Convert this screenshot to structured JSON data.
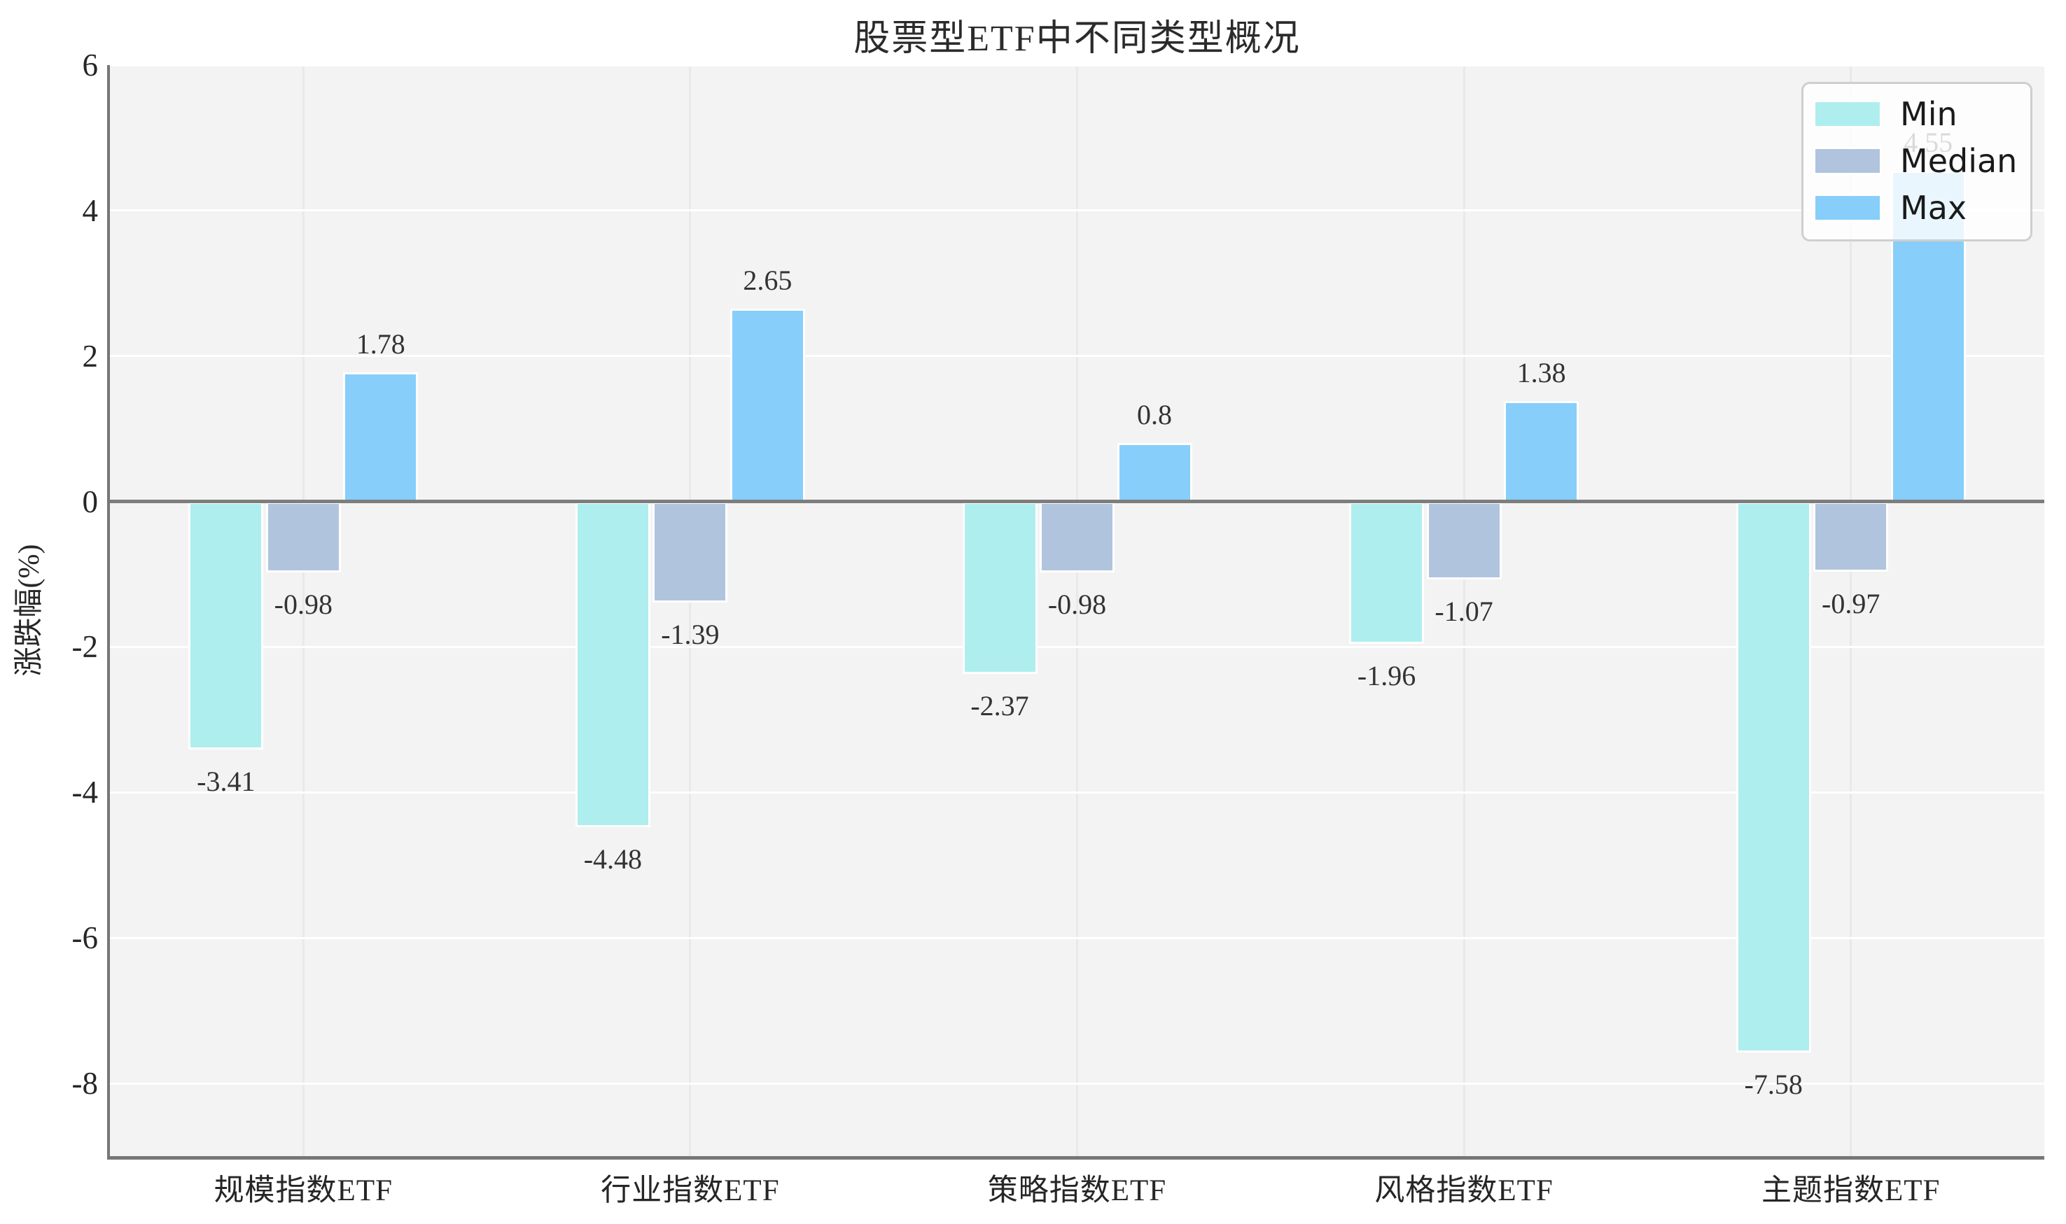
{
  "title": "股票型ETF中不同类型概况",
  "ylabel": "涨跌幅(%)",
  "legend": {
    "items": [
      "Min",
      "Median",
      "Max"
    ]
  },
  "colors": {
    "min": "#AFEEEE",
    "median": "#B0C4DE",
    "max": "#87CEFA",
    "plot_background": "#f2f3f2",
    "axis": "#767676",
    "zero_line": "#7d7d7d"
  },
  "chart_data": {
    "type": "bar",
    "title": "股票型ETF中不同类型概况",
    "xlabel": "",
    "ylabel": "涨跌幅(%)",
    "categories": [
      "规模指数ETF",
      "行业指数ETF",
      "策略指数ETF",
      "风格指数ETF",
      "主题指数ETF"
    ],
    "series": [
      {
        "name": "Min",
        "color": "#AFEEEE",
        "values": [
          -3.41,
          -4.48,
          -2.37,
          -1.96,
          -7.58
        ]
      },
      {
        "name": "Median",
        "color": "#B0C4DE",
        "values": [
          -0.98,
          -1.39,
          -0.98,
          -1.07,
          -0.97
        ]
      },
      {
        "name": "Max",
        "color": "#87CEFA",
        "values": [
          1.78,
          2.65,
          0.8,
          1.38,
          4.55
        ]
      }
    ],
    "value_labels": {
      "Min": [
        "-3.41",
        "-4.48",
        "-2.37",
        "-1.96",
        "-7.58"
      ],
      "Median": [
        "-0.98",
        "-1.39",
        "-0.98",
        "-1.07",
        "-0.97"
      ],
      "Max": [
        "1.78",
        "2.65",
        "0.8",
        "1.38",
        "4.55"
      ]
    },
    "yticks": [
      6,
      4,
      2,
      0,
      -2,
      -4,
      -6,
      -8
    ],
    "ylim": [
      -9,
      6
    ],
    "grid": true,
    "legend_position": "upper right",
    "legend_entries": [
      "Min",
      "Median",
      "Max"
    ]
  }
}
